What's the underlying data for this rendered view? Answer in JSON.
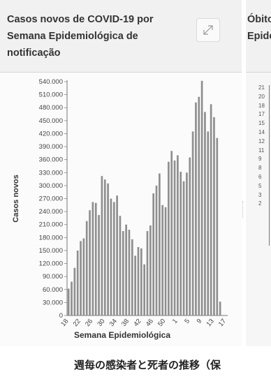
{
  "card": {
    "title": "Casos novos de COVID-19 por Semana Epidemiológica de notificação",
    "expand_icon": "expand-icon"
  },
  "card2": {
    "title_line1": "Óbitos",
    "title_line2": "Epide",
    "tick_fragments": [
      "21",
      "20",
      "18",
      "17",
      "15",
      "14",
      "12",
      "11",
      "9",
      "8",
      "6",
      "5",
      "3",
      "2"
    ]
  },
  "caption": "週毎の感染者と死者の推移（保",
  "chart_data": {
    "type": "bar",
    "title": "",
    "xlabel": "Semana Epidemiológica",
    "ylabel": "Casos novos",
    "ylim": [
      0,
      540000
    ],
    "y_ticks": [
      0,
      30000,
      60000,
      90000,
      120000,
      150000,
      180000,
      210000,
      240000,
      270000,
      300000,
      330000,
      360000,
      390000,
      420000,
      450000,
      480000,
      510000,
      540000
    ],
    "y_tick_labels": [
      "0",
      "30.000",
      "60.000",
      "90.000",
      "120.000",
      "150.000",
      "180.000",
      "210.000",
      "240.000",
      "270.000",
      "300.000",
      "330.000",
      "360.000",
      "390.000",
      "420.000",
      "450.000",
      "480.000",
      "510.000",
      "540.000"
    ],
    "categories": [
      "18",
      "19",
      "20",
      "21",
      "22",
      "23",
      "24",
      "25",
      "26",
      "27",
      "28",
      "29",
      "30",
      "31",
      "32",
      "33",
      "34",
      "35",
      "36",
      "37",
      "38",
      "39",
      "40",
      "41",
      "42",
      "43",
      "44",
      "45",
      "46",
      "47",
      "48",
      "49",
      "50",
      "51",
      "52",
      "53",
      "1",
      "2",
      "3",
      "4",
      "5",
      "6",
      "7",
      "8",
      "9",
      "10",
      "11",
      "12",
      "13",
      "14",
      "15",
      "16",
      "17"
    ],
    "x_tick_labels": [
      "18",
      "22",
      "26",
      "30",
      "34",
      "38",
      "42",
      "46",
      "50",
      "1",
      "5",
      "9",
      "13",
      "17"
    ],
    "values": [
      62000,
      78000,
      110000,
      150000,
      172000,
      178000,
      218000,
      243000,
      262000,
      260000,
      232000,
      322000,
      314000,
      305000,
      270000,
      262000,
      277000,
      230000,
      195000,
      210000,
      198000,
      176000,
      138000,
      158000,
      155000,
      118000,
      195000,
      208000,
      282000,
      300000,
      328000,
      255000,
      250000,
      355000,
      380000,
      358000,
      370000,
      332000,
      310000,
      330000,
      365000,
      425000,
      492000,
      505000,
      542000,
      470000,
      425000,
      488000,
      458000,
      410000,
      32000,
      0,
      0
    ]
  }
}
